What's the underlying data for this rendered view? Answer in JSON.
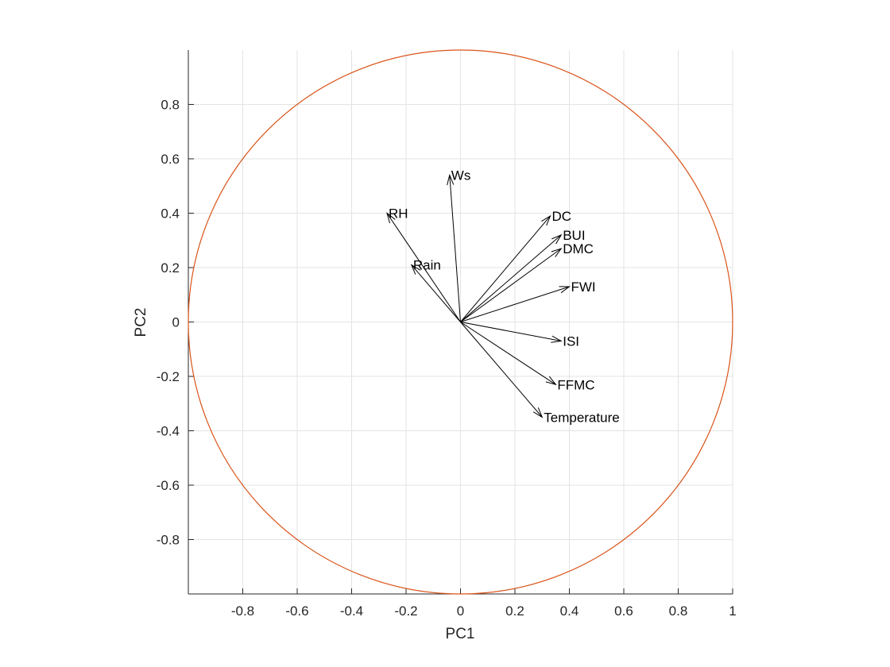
{
  "chart_data": {
    "type": "biplot",
    "xlabel": "PC1",
    "ylabel": "PC2",
    "xlim": [
      -1,
      1
    ],
    "ylim": [
      -1,
      1
    ],
    "grid": true,
    "x_ticks": [
      "-0.8",
      "-0.6",
      "-0.4",
      "-0.2",
      "0",
      "0.2",
      "0.4",
      "0.6",
      "0.8",
      "1"
    ],
    "y_ticks": [
      "0.8",
      "0.6",
      "0.4",
      "0.2",
      "0",
      "-0.2",
      "-0.4",
      "-0.6",
      "-0.8"
    ],
    "circle_color": "#d95319",
    "vectors": [
      {
        "label": "Ws",
        "x": -0.04,
        "y": 0.54
      },
      {
        "label": "RH",
        "x": -0.27,
        "y": 0.4
      },
      {
        "label": "Rain",
        "x": -0.18,
        "y": 0.21
      },
      {
        "label": "DC",
        "x": 0.33,
        "y": 0.39
      },
      {
        "label": "BUI",
        "x": 0.37,
        "y": 0.32
      },
      {
        "label": "DMC",
        "x": 0.37,
        "y": 0.27
      },
      {
        "label": "FWI",
        "x": 0.4,
        "y": 0.13
      },
      {
        "label": "ISI",
        "x": 0.37,
        "y": -0.07
      },
      {
        "label": "FFMC",
        "x": 0.35,
        "y": -0.23
      },
      {
        "label": "Temperature",
        "x": 0.3,
        "y": -0.35
      }
    ]
  }
}
